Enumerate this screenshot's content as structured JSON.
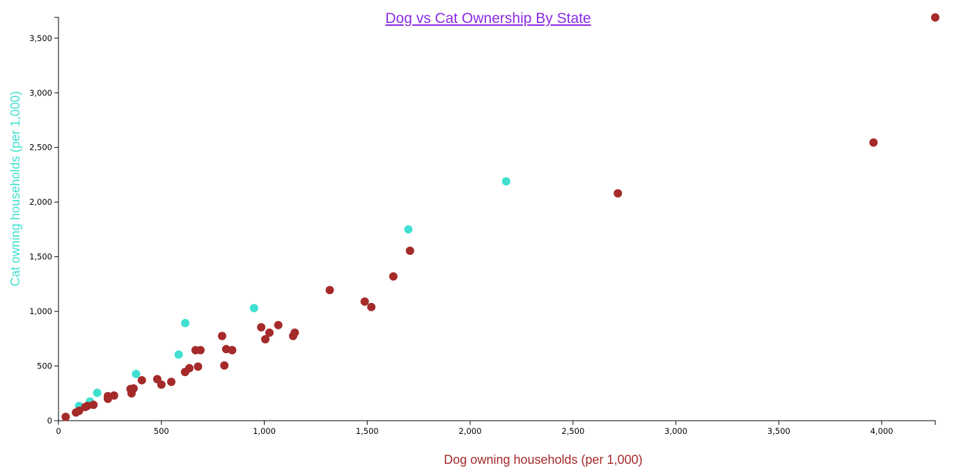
{
  "chart_data": {
    "type": "scatter",
    "title": "Dog vs Cat Ownership By State",
    "xlabel": "Dog owning households (per 1,000)",
    "ylabel": "Cat owning households (per 1,000)",
    "xlim": [
      0,
      4260
    ],
    "ylim": [
      0,
      3690
    ],
    "x_ticks": [
      0,
      500,
      1000,
      1500,
      2000,
      2500,
      3000,
      3500,
      4000
    ],
    "x_tick_labels": [
      "0",
      "500",
      "1,000",
      "1,500",
      "2,000",
      "2,500",
      "3,000",
      "3,500",
      "4,000"
    ],
    "y_ticks": [
      0,
      500,
      1000,
      1500,
      2000,
      2500,
      3000,
      3500
    ],
    "y_tick_labels": [
      "0",
      "500",
      "1,000",
      "1,500",
      "2,000",
      "2,500",
      "3,000",
      "3,500"
    ],
    "grid": false,
    "colors": {
      "red_series": "#a52a2a",
      "teal_series": "#40e0d0",
      "title": "#8a2be2"
    },
    "series": [
      {
        "color": "#40e0d0",
        "points": [
          {
            "x": 100,
            "y": 135
          },
          {
            "x": 153,
            "y": 175
          },
          {
            "x": 188,
            "y": 255
          },
          {
            "x": 377,
            "y": 428
          },
          {
            "x": 584,
            "y": 605
          },
          {
            "x": 616,
            "y": 893
          },
          {
            "x": 950,
            "y": 1030
          },
          {
            "x": 1700,
            "y": 1750
          },
          {
            "x": 2175,
            "y": 2190
          }
        ]
      },
      {
        "color": "#a52a2a",
        "points": [
          {
            "x": 35,
            "y": 35
          },
          {
            "x": 85,
            "y": 75
          },
          {
            "x": 100,
            "y": 90
          },
          {
            "x": 130,
            "y": 125
          },
          {
            "x": 140,
            "y": 135
          },
          {
            "x": 170,
            "y": 145
          },
          {
            "x": 240,
            "y": 200
          },
          {
            "x": 240,
            "y": 225
          },
          {
            "x": 270,
            "y": 230
          },
          {
            "x": 350,
            "y": 290
          },
          {
            "x": 355,
            "y": 250
          },
          {
            "x": 365,
            "y": 295
          },
          {
            "x": 405,
            "y": 370
          },
          {
            "x": 480,
            "y": 380
          },
          {
            "x": 500,
            "y": 330
          },
          {
            "x": 548,
            "y": 355
          },
          {
            "x": 615,
            "y": 445
          },
          {
            "x": 636,
            "y": 480
          },
          {
            "x": 666,
            "y": 645
          },
          {
            "x": 678,
            "y": 495
          },
          {
            "x": 690,
            "y": 645
          },
          {
            "x": 795,
            "y": 775
          },
          {
            "x": 806,
            "y": 505
          },
          {
            "x": 815,
            "y": 655
          },
          {
            "x": 844,
            "y": 645
          },
          {
            "x": 985,
            "y": 855
          },
          {
            "x": 1005,
            "y": 745
          },
          {
            "x": 1025,
            "y": 805
          },
          {
            "x": 1068,
            "y": 875
          },
          {
            "x": 1140,
            "y": 775
          },
          {
            "x": 1148,
            "y": 805
          },
          {
            "x": 1318,
            "y": 1195
          },
          {
            "x": 1488,
            "y": 1090
          },
          {
            "x": 1520,
            "y": 1040
          },
          {
            "x": 1627,
            "y": 1320
          },
          {
            "x": 1708,
            "y": 1555
          },
          {
            "x": 2718,
            "y": 2080
          },
          {
            "x": 3960,
            "y": 2545
          },
          {
            "x": 4260,
            "y": 3690
          }
        ]
      }
    ]
  }
}
